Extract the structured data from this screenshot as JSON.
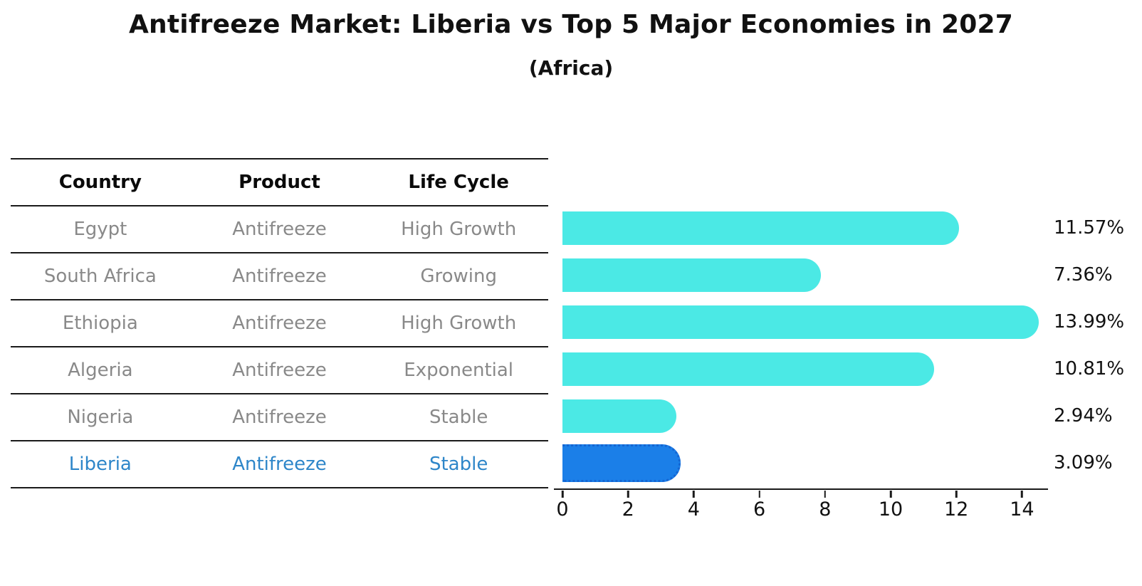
{
  "title": "Antifreeze Market: Liberia vs Top 5 Major Economies in 2027",
  "subtitle": "(Africa)",
  "table": {
    "headers": [
      "Country",
      "Product",
      "Life Cycle"
    ],
    "rows": [
      {
        "country": "Egypt",
        "product": "Antifreeze",
        "life_cycle": "High Growth",
        "highlighted": false
      },
      {
        "country": "South Africa",
        "product": "Antifreeze",
        "life_cycle": "Growing",
        "highlighted": false
      },
      {
        "country": "Ethiopia",
        "product": "Antifreeze",
        "life_cycle": "High Growth",
        "highlighted": false
      },
      {
        "country": "Algeria",
        "product": "Antifreeze",
        "life_cycle": "Exponential",
        "highlighted": false
      },
      {
        "country": "Nigeria",
        "product": "Antifreeze",
        "life_cycle": "Stable",
        "highlighted": false
      },
      {
        "country": "Liberia",
        "product": "Antifreeze",
        "life_cycle": "Stable",
        "highlighted": true
      }
    ]
  },
  "chart_data": {
    "type": "bar",
    "orientation": "horizontal",
    "title": "Antifreeze Market: Liberia vs Top 5 Major Economies in 2027",
    "subtitle": "(Africa)",
    "categories": [
      "Egypt",
      "South Africa",
      "Ethiopia",
      "Algeria",
      "Nigeria",
      "Liberia"
    ],
    "values": [
      11.57,
      7.36,
      13.99,
      10.81,
      2.94,
      3.09
    ],
    "value_labels": [
      "11.57%",
      "7.36%",
      "13.99%",
      "10.81%",
      "2.94%",
      "3.09%"
    ],
    "xlabel": "",
    "ylabel": "",
    "xlim": [
      0,
      14.8
    ],
    "xticks": [
      "0",
      "2",
      "4",
      "6",
      "8",
      "10",
      "12",
      "14"
    ],
    "grid": false,
    "legend": "none",
    "bar_style": "rounded-right-cap",
    "highlight_index": 5
  },
  "colors": {
    "bar": "#4BE9E5",
    "highlight_bar": "#1B7FE8",
    "highlight_bar_edge": "#1565D2",
    "highlight_text": "#2E86C9",
    "row_text": "#898989",
    "header_text": "#0a0a0a",
    "axis": "#1a1a1a"
  }
}
